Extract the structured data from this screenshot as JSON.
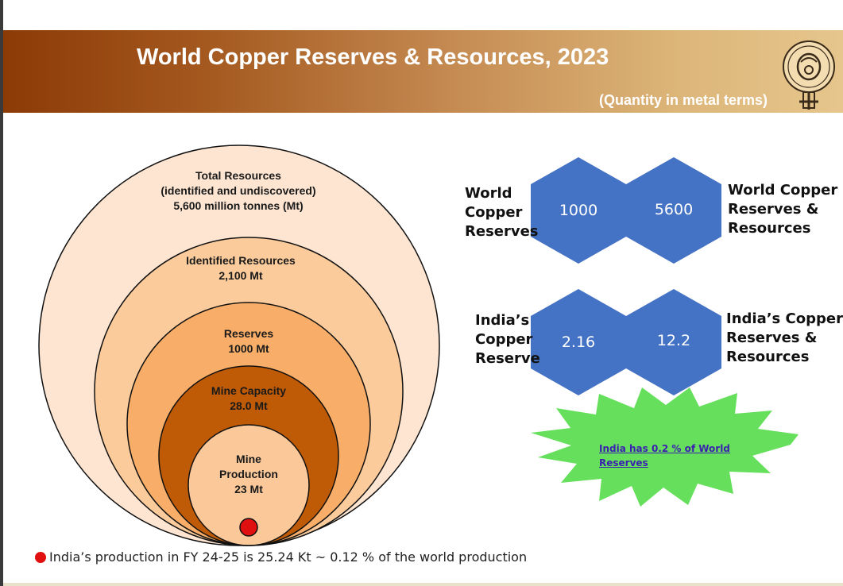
{
  "header": {
    "title": "World Copper Reserves & Resources, 2023",
    "subtitle": "(Quantity in metal terms)"
  },
  "circles": {
    "total": {
      "line1": "Total Resources",
      "line2": "(identified and undiscovered)",
      "line3": "5,600 million tonnes (Mt)"
    },
    "identified": {
      "line1": "Identified Resources",
      "line2": "2,100 Mt"
    },
    "reserves": {
      "line1": "Reserves",
      "line2": "1000 Mt"
    },
    "capacity": {
      "line1": "Mine Capacity",
      "line2": "28.0 Mt"
    },
    "production": {
      "line1": "Mine",
      "line2": "Production",
      "line3": "23 Mt"
    }
  },
  "hexes": {
    "world_label": [
      "World",
      "Copper",
      "Reserves"
    ],
    "world_reserves": "1000",
    "world_resources": "5600",
    "world_res_label": [
      "World Copper",
      "Reserves &",
      "Resources"
    ],
    "india_label": [
      "India’s",
      "Copper",
      "Reserve"
    ],
    "india_reserve": "2.16",
    "india_resources": "12.2",
    "india_res_label": [
      "India’s Copper",
      "Reserves &",
      "Resources"
    ]
  },
  "callout": {
    "line1": "India has 0.2 % of World",
    "line2": "Reserves"
  },
  "footnote": "India’s production in FY 24-25 is 25.24 Kt ~ 0.12 % of the world production",
  "colors": {
    "circle_total": "#fde5d2",
    "circle_identified": "#fbcb9b",
    "circle_reserves": "#f8ae68",
    "circle_capacity": "#bf5a06",
    "circle_production": "#fbc89a",
    "hexagon": "#4472c4",
    "star": "#66e05c",
    "marker": "#e01010"
  },
  "icons": {
    "logo": "hcl-logo-icon"
  }
}
